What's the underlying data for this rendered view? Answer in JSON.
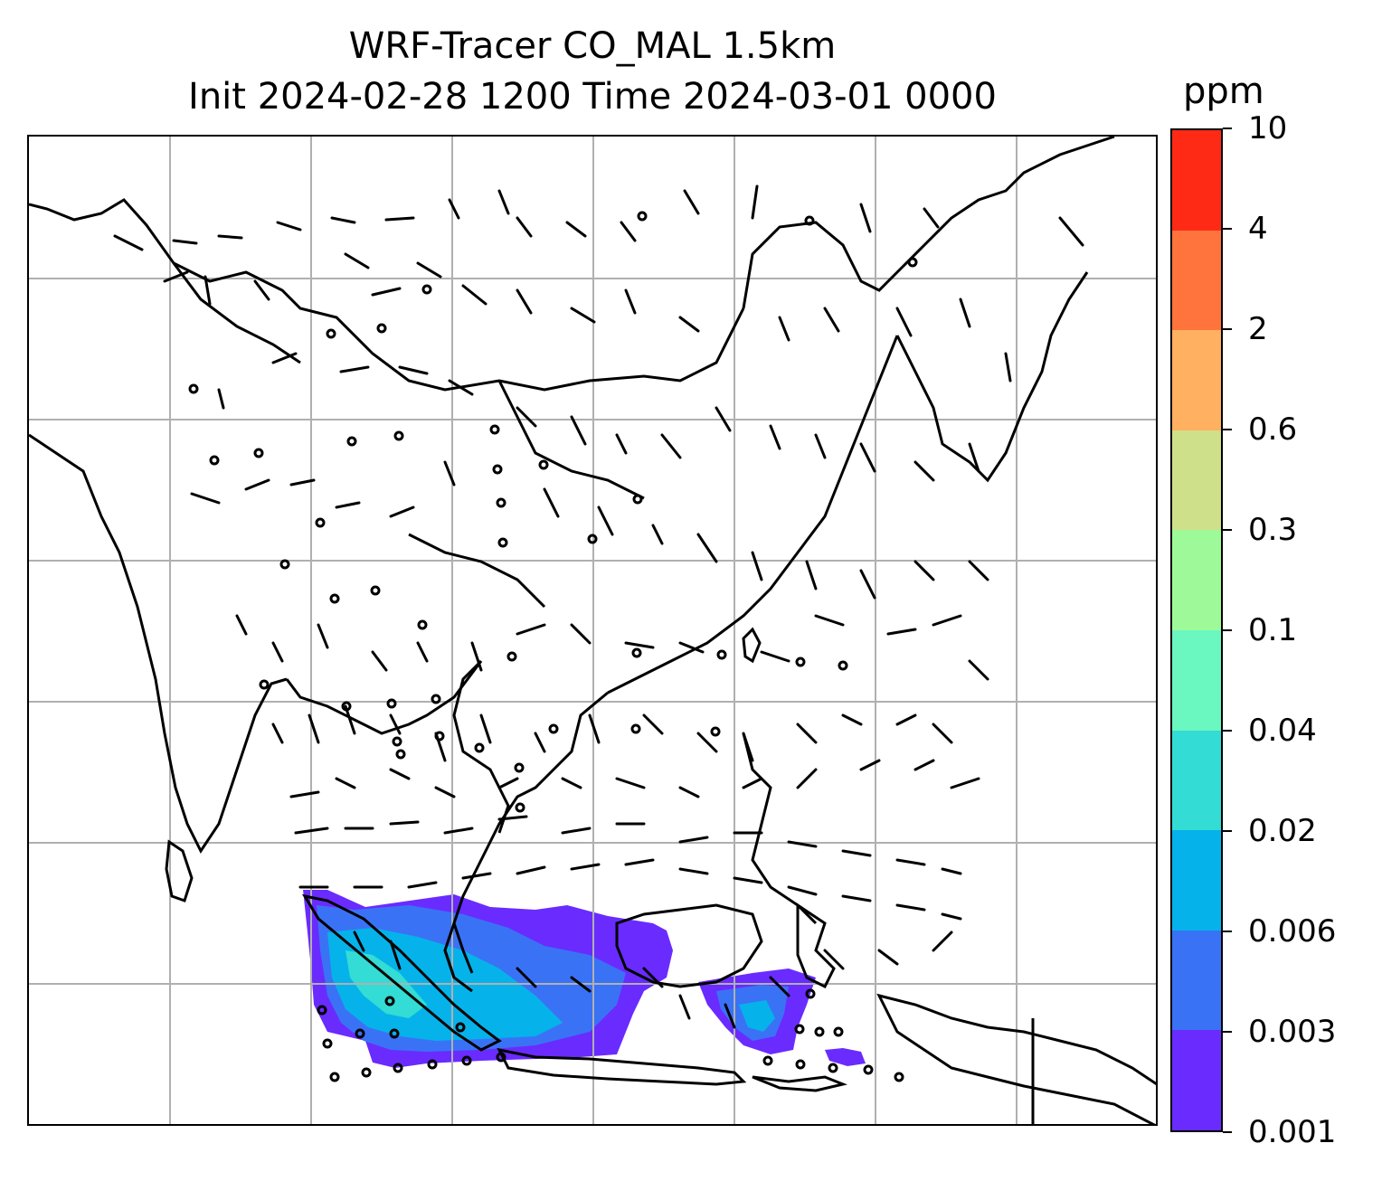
{
  "title": {
    "line1": "WRF-Tracer CO_MAL 1.5km",
    "line2": "Init 2024-02-28 1200 Time 2024-03-01 0000"
  },
  "colorbar": {
    "unit": "ppm",
    "levels": [
      "0.001",
      "0.003",
      "0.006",
      "0.02",
      "0.04",
      "0.1",
      "0.3",
      "0.6",
      "2",
      "4",
      "10"
    ],
    "colors": [
      "#6a2bff",
      "#3a72f6",
      "#05b3ea",
      "#33dcd4",
      "#6af7c0",
      "#9efa98",
      "#cfe08a",
      "#ffb060",
      "#ff733c",
      "#ff2a16"
    ]
  },
  "map": {
    "gridlines": true,
    "coastline_color": "#000000",
    "grid_color": "#b0b0b0",
    "wind_barbs": "black",
    "calm_marker": "circle"
  }
}
